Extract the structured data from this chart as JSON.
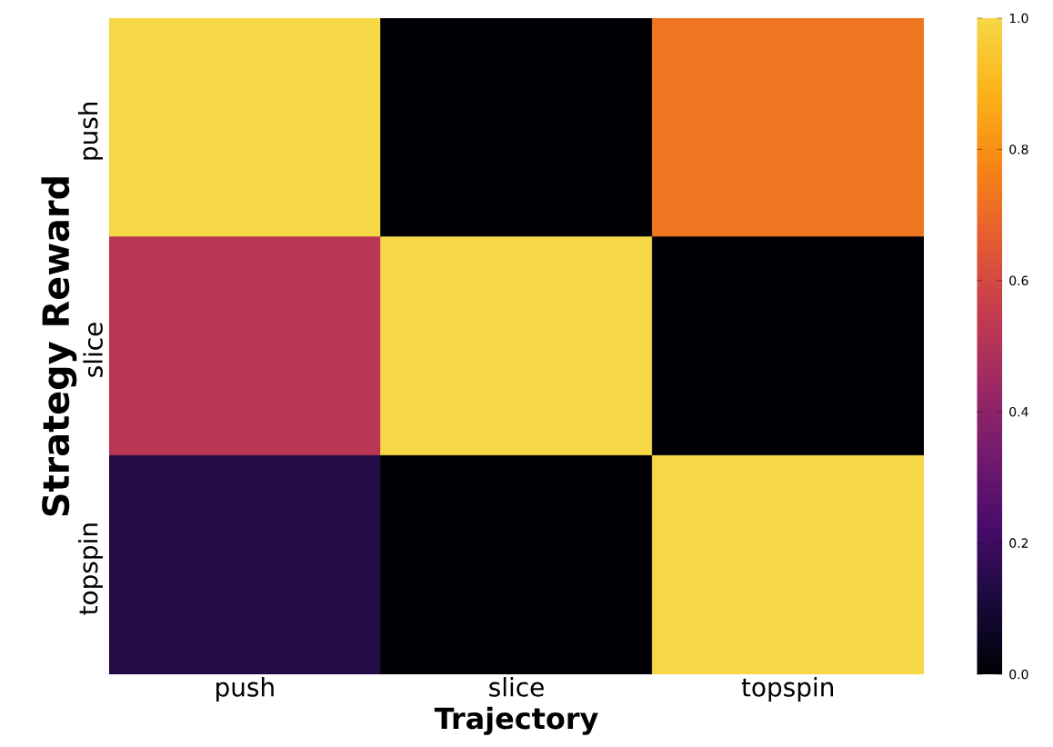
{
  "chart_data": {
    "type": "heatmap",
    "xlabel": "Trajectory",
    "ylabel": "Strategy Reward",
    "categories": [
      "push",
      "slice",
      "topspin"
    ],
    "y_categories": [
      "push",
      "slice",
      "topspin"
    ],
    "cells": [
      [
        1.0,
        0.0,
        0.73
      ],
      [
        0.52,
        1.0,
        0.0
      ],
      [
        0.14,
        0.0,
        1.0
      ]
    ],
    "clim": [
      0,
      1
    ],
    "cticks": [
      {
        "value": 0,
        "label": "0.0"
      },
      {
        "value": 0.2,
        "label": "0.2"
      },
      {
        "value": 0.4,
        "label": "0.4"
      },
      {
        "value": 0.6,
        "label": "0.6"
      },
      {
        "value": 0.8,
        "label": "0.8"
      },
      {
        "value": 1,
        "label": "1.0"
      }
    ]
  }
}
